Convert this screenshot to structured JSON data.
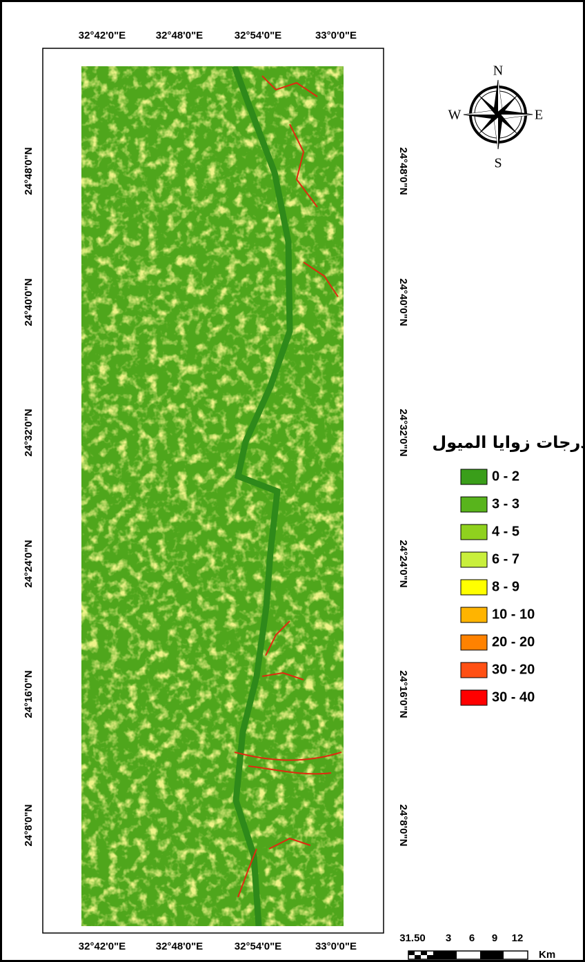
{
  "map": {
    "top_labels": [
      "32°42'0\"E",
      "32°48'0\"E",
      "32°54'0\"E",
      "33°0'0\"E"
    ],
    "bottom_labels": [
      "32°42'0\"E",
      "32°48'0\"E",
      "32°54'0\"E",
      "33°0'0\"E"
    ],
    "left_labels": [
      "24°48'0\"N",
      "24°40'0\"N",
      "24°32'0\"N",
      "24°24'0\"N",
      "24°16'0\"N",
      "24°8'0\"N"
    ],
    "right_labels": [
      "24°48'0\"N",
      "24°40'0\"N",
      "24°32'0\"N",
      "24°24'0\"N",
      "24°16'0\"N",
      "24°8'0\"N"
    ],
    "compass": {
      "n": "N",
      "s": "S",
      "e": "E",
      "w": "W"
    },
    "legend": {
      "title": "درجات زوايا الميول",
      "items": [
        {
          "label": "0 - 2",
          "color": "#3a9e1a"
        },
        {
          "label": "3 - 3",
          "color": "#58b41c"
        },
        {
          "label": "4 - 5",
          "color": "#8fd11e"
        },
        {
          "label": "6 - 7",
          "color": "#c9ef3c"
        },
        {
          "label": "8 - 9",
          "color": "#ffff00"
        },
        {
          "label": "10 - 10",
          "color": "#ffb400"
        },
        {
          "label": "20 - 20",
          "color": "#ff8200"
        },
        {
          "label": "30 - 20",
          "color": "#ff5014"
        },
        {
          "label": "30 - 40",
          "color": "#ff0000"
        }
      ]
    },
    "scale": {
      "labels": [
        "31.50",
        "3",
        "6",
        "9",
        "12"
      ],
      "unit": "Km"
    }
  }
}
